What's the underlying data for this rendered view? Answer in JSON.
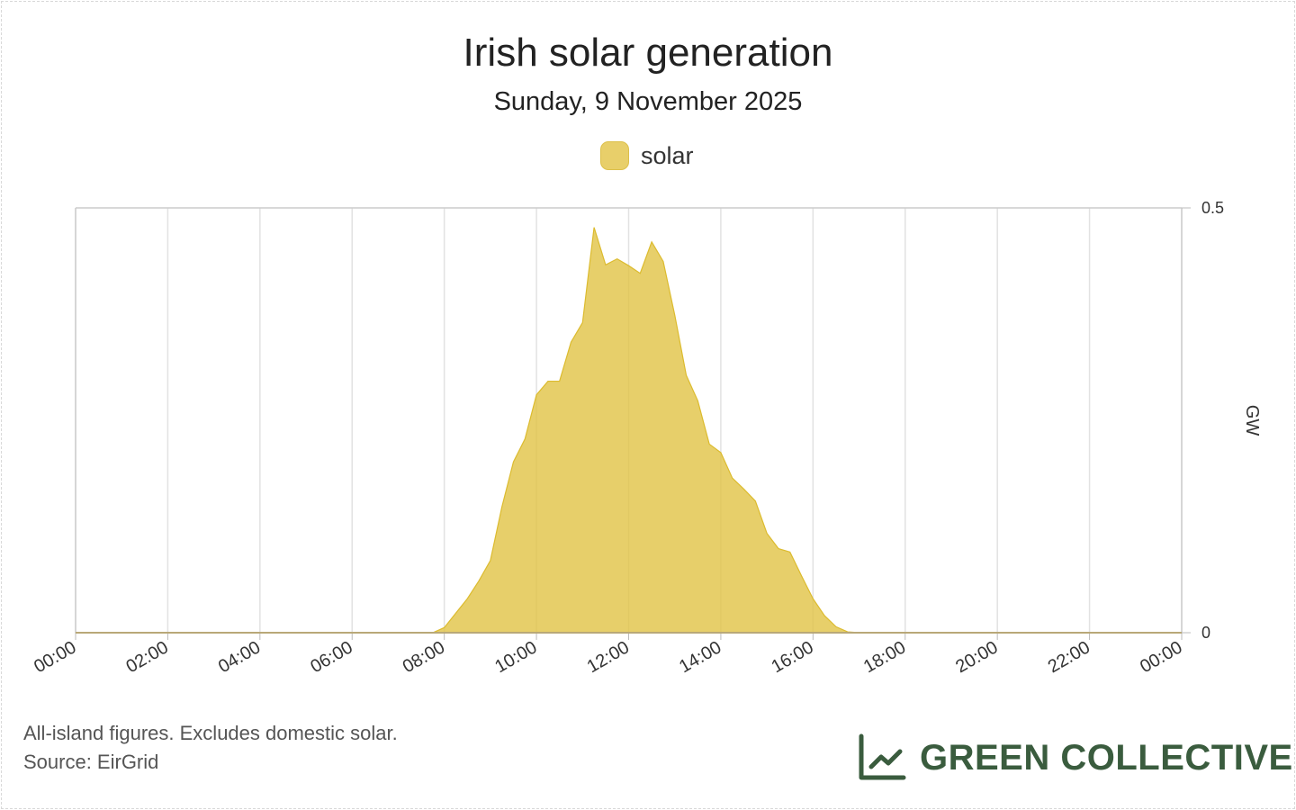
{
  "chart_data": {
    "type": "area",
    "title": "Irish solar generation",
    "subtitle": "Sunday, 9 November 2025",
    "legend": [
      {
        "name": "solar",
        "color": "#e8cf6a"
      }
    ],
    "legend_position": "top-center",
    "ylabel": "GW",
    "ylim": [
      0,
      0.5
    ],
    "y_ticks": [
      "0",
      "0.5"
    ],
    "y_axis_side": "right",
    "xlim_hours": [
      0,
      24
    ],
    "x_ticks": [
      "00:00",
      "02:00",
      "04:00",
      "06:00",
      "08:00",
      "10:00",
      "12:00",
      "14:00",
      "16:00",
      "18:00",
      "20:00",
      "22:00",
      "00:00"
    ],
    "grid": true,
    "series": [
      {
        "name": "solar",
        "x_hours": [
          0,
          7.75,
          8,
          8.25,
          8.5,
          8.75,
          9,
          9.25,
          9.5,
          9.75,
          10,
          10.25,
          10.5,
          10.75,
          11,
          11.25,
          11.5,
          11.75,
          12,
          12.25,
          12.5,
          12.75,
          13,
          13.25,
          13.5,
          13.75,
          14,
          14.25,
          14.5,
          14.75,
          15,
          15.25,
          15.5,
          15.75,
          16,
          16.25,
          16.5,
          16.75,
          17,
          24
        ],
        "values": [
          0,
          0,
          0.006,
          0.023,
          0.04,
          0.061,
          0.085,
          0.148,
          0.201,
          0.228,
          0.28,
          0.296,
          0.296,
          0.342,
          0.365,
          0.477,
          0.433,
          0.44,
          0.432,
          0.423,
          0.46,
          0.437,
          0.374,
          0.303,
          0.273,
          0.222,
          0.212,
          0.182,
          0.169,
          0.155,
          0.117,
          0.099,
          0.095,
          0.067,
          0.04,
          0.02,
          0.007,
          0.001,
          0,
          0
        ]
      }
    ]
  },
  "footer": {
    "note": "All-island figures. Excludes domestic solar.",
    "source": "Source: EirGrid"
  },
  "brand": {
    "name": "GREEN COLLECTIVE",
    "color": "#3a5c3e"
  }
}
